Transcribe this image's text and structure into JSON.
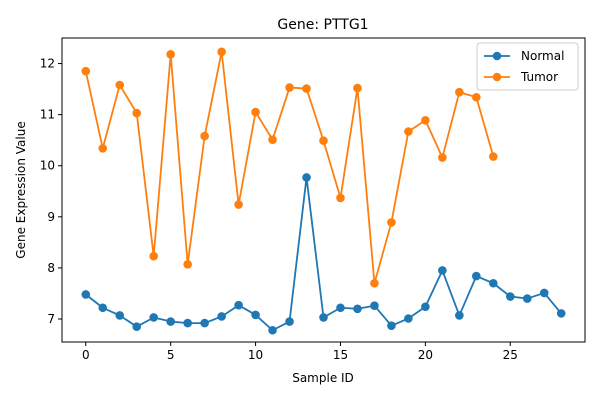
{
  "chart_data": {
    "type": "line",
    "title": "Gene: PTTG1",
    "xlabel": "Sample ID",
    "ylabel": "Gene Expression Value",
    "xlim": [
      -1.4,
      29.4
    ],
    "ylim": [
      6.55,
      12.5
    ],
    "xticks": [
      0,
      5,
      10,
      15,
      20,
      25
    ],
    "yticks": [
      7,
      8,
      9,
      10,
      11,
      12
    ],
    "grid": false,
    "legend_position": "top-right",
    "series": [
      {
        "name": "Normal",
        "color": "#1f77b4",
        "x": [
          0,
          1,
          2,
          3,
          4,
          5,
          6,
          7,
          8,
          9,
          10,
          11,
          12,
          13,
          14,
          15,
          16,
          17,
          18,
          19,
          20,
          21,
          22,
          23,
          24,
          25,
          26,
          27,
          28
        ],
        "values": [
          7.48,
          7.22,
          7.07,
          6.85,
          7.03,
          6.95,
          6.92,
          6.92,
          7.05,
          7.27,
          7.08,
          6.78,
          6.95,
          9.77,
          7.03,
          7.22,
          7.2,
          7.26,
          6.87,
          7.01,
          7.24,
          7.95,
          7.07,
          7.84,
          7.7,
          7.44,
          7.4,
          7.51,
          7.11
        ]
      },
      {
        "name": "Tumor",
        "color": "#ff7f0e",
        "x": [
          0,
          1,
          2,
          3,
          4,
          5,
          6,
          7,
          8,
          9,
          10,
          11,
          12,
          13,
          14,
          15,
          16,
          17,
          18,
          19,
          20,
          21,
          22,
          23,
          24
        ],
        "values": [
          11.85,
          10.34,
          11.58,
          11.03,
          8.23,
          12.18,
          8.07,
          10.58,
          12.23,
          9.24,
          11.05,
          10.51,
          11.53,
          11.51,
          10.49,
          9.37,
          11.52,
          7.7,
          8.89,
          10.67,
          10.89,
          10.16,
          11.44,
          11.34,
          10.18
        ]
      }
    ]
  }
}
